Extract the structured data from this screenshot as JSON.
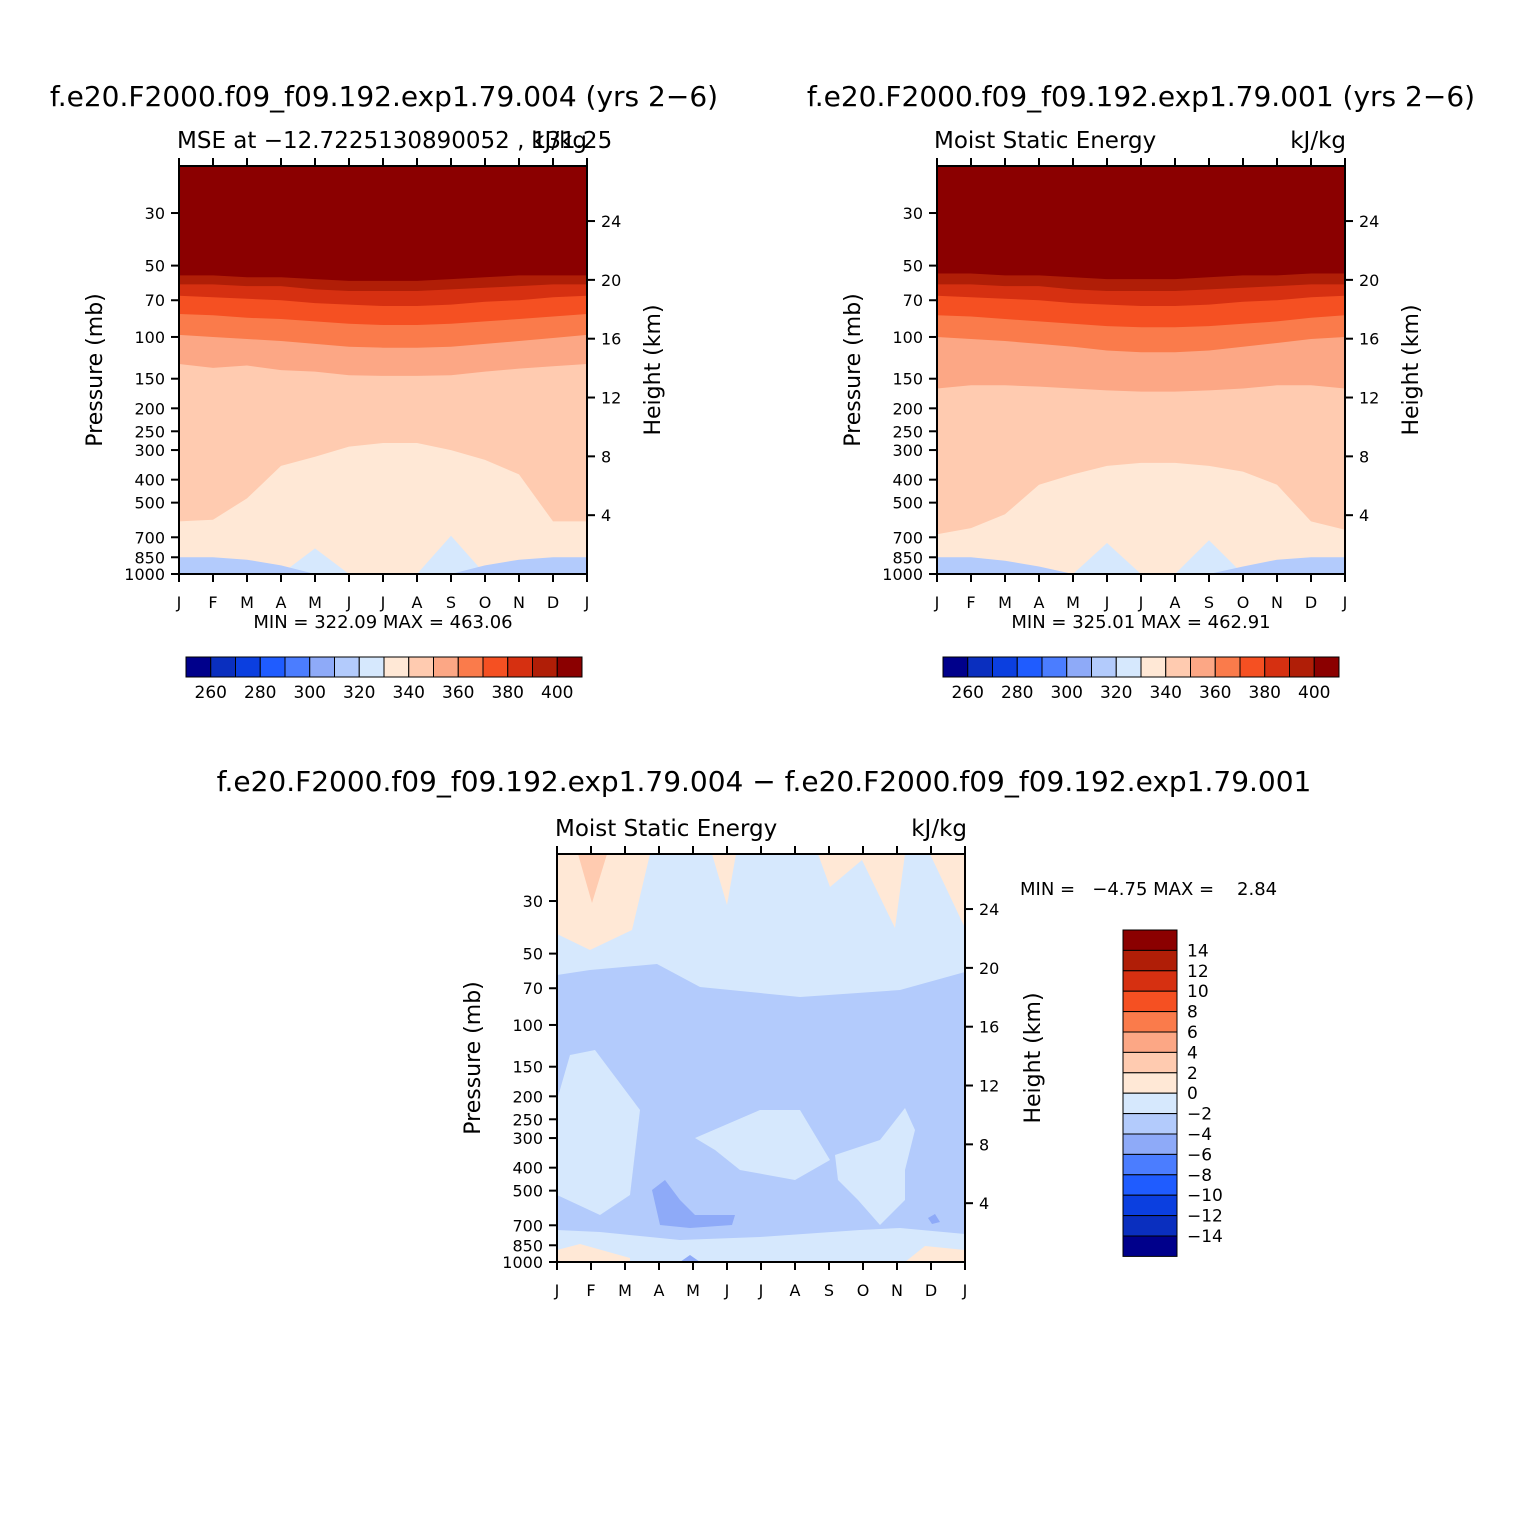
{
  "palette_colors": [
    "#00008b",
    "#0a2fbf",
    "#0b3fe0",
    "#1f5cff",
    "#4b7dff",
    "#8eaaf8",
    "#b3cbfc",
    "#d6e8fd",
    "#ffe8d6",
    "#ffcbb0",
    "#fca785",
    "#fa7b4b",
    "#f55022",
    "#d63011",
    "#b01e07",
    "#8b0000"
  ],
  "chart_data": [
    {
      "type": "contour",
      "panel_id": "top-left",
      "case_title": "f.e20.F2000.f09_f09.192.exp1.79.004 (yrs 2−6)",
      "left_string": "MSE at −12.7225130890052 , 131.25",
      "right_string": "kJ/kg",
      "ylabel": "Pressure (mb)",
      "ylabel2": "Height (km)",
      "x_ticklabels": [
        "J",
        "F",
        "M",
        "A",
        "M",
        "J",
        "J",
        "A",
        "S",
        "O",
        "N",
        "D",
        "J"
      ],
      "y_ticks": [
        30,
        50,
        70,
        100,
        150,
        200,
        250,
        300,
        400,
        500,
        700,
        850,
        1000
      ],
      "height_ticks": [
        24,
        20,
        16,
        12,
        8,
        4
      ],
      "min_max_text": "MIN = 322.09 MAX = 463.06",
      "min": 322.09,
      "max": 463.06,
      "colorbar_ticklabels": [
        "260",
        "280",
        "300",
        "320",
        "340",
        "360",
        "380",
        "400"
      ],
      "levels_note": "contour levels 250-410 step 10",
      "boundaries": [
        {
          "level": 410,
          "p": [
            55,
            55,
            56,
            56,
            57,
            58,
            58,
            58,
            57,
            56,
            55,
            55,
            55
          ]
        },
        {
          "level": 400,
          "p": [
            60,
            60,
            61,
            61,
            63,
            64,
            64,
            64,
            63,
            62,
            61,
            60,
            60
          ]
        },
        {
          "level": 390,
          "p": [
            67,
            68,
            69,
            70,
            72,
            73,
            74,
            74,
            73,
            71,
            70,
            68,
            67
          ]
        },
        {
          "level": 380,
          "p": [
            80,
            81,
            83,
            84,
            86,
            88,
            89,
            89,
            88,
            86,
            84,
            82,
            80
          ]
        },
        {
          "level": 370,
          "p": [
            98,
            100,
            102,
            104,
            107,
            110,
            111,
            111,
            110,
            107,
            104,
            101,
            98
          ]
        },
        {
          "level": 360,
          "p": [
            130,
            135,
            132,
            138,
            140,
            145,
            146,
            146,
            145,
            140,
            136,
            133,
            130
          ]
        },
        {
          "level": 350,
          "p": [
            600,
            590,
            480,
            350,
            320,
            290,
            280,
            280,
            300,
            330,
            380,
            600,
            600
          ]
        },
        {
          "level": 340,
          "p": [
            1000,
            1000,
            1000,
            1000,
            780,
            1000,
            1000,
            1000,
            690,
            1000,
            1000,
            1000,
            1000
          ]
        },
        {
          "level": 330,
          "p": [
            850,
            850,
            870,
            920,
            1000,
            1000,
            1000,
            1000,
            1000,
            920,
            870,
            850,
            850
          ]
        }
      ]
    },
    {
      "type": "contour",
      "panel_id": "top-right",
      "case_title": "f.e20.F2000.f09_f09.192.exp1.79.001 (yrs 2−6)",
      "left_string": "Moist Static Energy",
      "right_string": "kJ/kg",
      "ylabel": "Pressure (mb)",
      "ylabel2": "Height (km)",
      "x_ticklabels": [
        "J",
        "F",
        "M",
        "A",
        "M",
        "J",
        "J",
        "A",
        "S",
        "O",
        "N",
        "D",
        "J"
      ],
      "y_ticks": [
        30,
        50,
        70,
        100,
        150,
        200,
        250,
        300,
        400,
        500,
        700,
        850,
        1000
      ],
      "height_ticks": [
        24,
        20,
        16,
        12,
        8,
        4
      ],
      "min_max_text": "MIN = 325.01 MAX = 462.91",
      "min": 325.01,
      "max": 462.91,
      "colorbar_ticklabels": [
        "260",
        "280",
        "300",
        "320",
        "340",
        "360",
        "380",
        "400"
      ],
      "levels_note": "contour levels 250-410 step 10",
      "boundaries": [
        {
          "level": 410,
          "p": [
            54,
            54,
            55,
            55,
            56,
            57,
            57,
            57,
            56,
            55,
            55,
            54,
            54
          ]
        },
        {
          "level": 400,
          "p": [
            60,
            60,
            61,
            61,
            63,
            64,
            64,
            64,
            63,
            62,
            61,
            60,
            60
          ]
        },
        {
          "level": 390,
          "p": [
            67,
            68,
            69,
            70,
            72,
            73,
            74,
            74,
            73,
            71,
            70,
            68,
            67
          ]
        },
        {
          "level": 380,
          "p": [
            81,
            82,
            84,
            86,
            88,
            90,
            91,
            91,
            90,
            88,
            86,
            83,
            81
          ]
        },
        {
          "level": 370,
          "p": [
            100,
            102,
            104,
            107,
            110,
            114,
            116,
            116,
            114,
            110,
            106,
            102,
            100
          ]
        },
        {
          "level": 360,
          "p": [
            165,
            160,
            160,
            162,
            165,
            168,
            170,
            170,
            168,
            165,
            160,
            160,
            165
          ]
        },
        {
          "level": 350,
          "p": [
            680,
            640,
            560,
            420,
            380,
            350,
            340,
            340,
            350,
            370,
            420,
            600,
            650
          ]
        },
        {
          "level": 340,
          "p": [
            1000,
            1000,
            1000,
            1000,
            1000,
            740,
            1000,
            1000,
            720,
            1000,
            1000,
            1000,
            1000
          ]
        },
        {
          "level": 330,
          "p": [
            850,
            850,
            880,
            930,
            1000,
            1000,
            1000,
            1000,
            1000,
            930,
            870,
            850,
            850
          ]
        }
      ]
    },
    {
      "type": "contour",
      "panel_id": "bottom-difference",
      "case_title": "f.e20.F2000.f09_f09.192.exp1.79.004 − f.e20.F2000.f09_f09.192.exp1.79.001",
      "left_string": "Moist Static Energy",
      "right_string": "kJ/kg",
      "ylabel": "Pressure (mb)",
      "ylabel2": "Height (km)",
      "x_ticklabels": [
        "J",
        "F",
        "M",
        "A",
        "M",
        "J",
        "J",
        "A",
        "S",
        "O",
        "N",
        "D",
        "J"
      ],
      "y_ticks": [
        30,
        50,
        70,
        100,
        150,
        200,
        250,
        300,
        400,
        500,
        700,
        850,
        1000
      ],
      "height_ticks": [
        24,
        20,
        16,
        12,
        8,
        4
      ],
      "min_max_text": "MIN =   −4.75 MAX =    2.84",
      "min": -4.75,
      "max": 2.84,
      "colorbar_ticklabels": [
        "14",
        "12",
        "10",
        "8",
        "6",
        "4",
        "2",
        "0",
        "−2",
        "−4",
        "−6",
        "−8",
        "−10",
        "−12",
        "−14"
      ],
      "levels_note": "contour levels −16 to 16 step 2 (diverging)",
      "base_level": -2
    }
  ]
}
